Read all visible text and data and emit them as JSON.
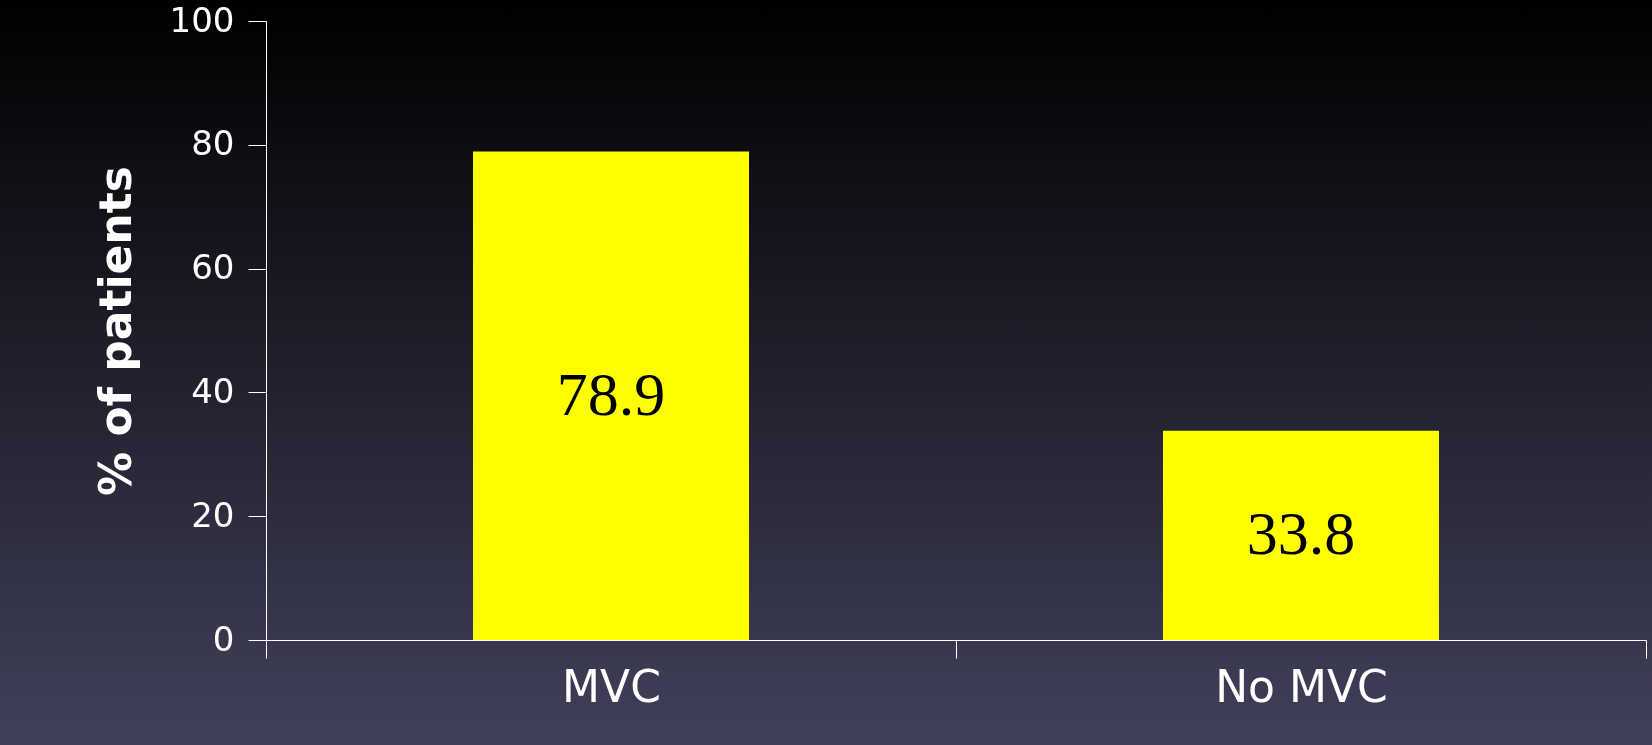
{
  "chart_data": {
    "type": "bar",
    "ylabel": "% of patients",
    "categories": [
      "MVC",
      "No MVC"
    ],
    "values": [
      78.9,
      33.8
    ],
    "color": "#ffff00",
    "ylim": [
      0,
      100
    ],
    "yticks": [
      0,
      20,
      40,
      60,
      80,
      100
    ],
    "data_labels": true,
    "grid": false
  }
}
